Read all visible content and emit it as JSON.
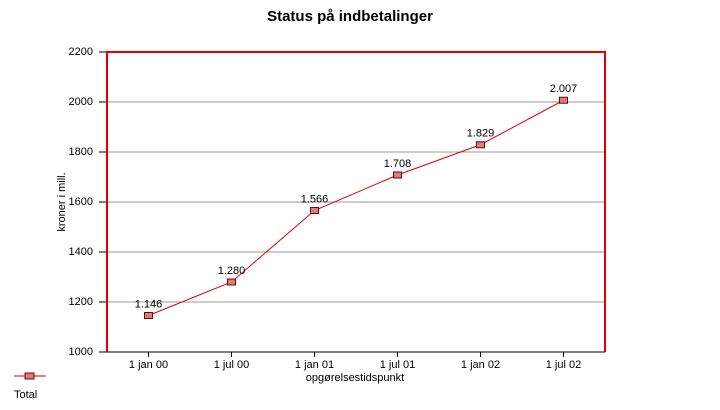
{
  "chart_data": {
    "type": "line",
    "title": "Status på indbetalinger",
    "x_label": "opgørelsestidspunkt",
    "y_label": "kroner i mill.",
    "categories": [
      "1 jan 00",
      "1 jul 00",
      "1 jan 01",
      "1 jul 01",
      "1 jan 02",
      "1 jul 02"
    ],
    "series": [
      {
        "name": "Total",
        "color": "#e00000",
        "marker_color": "#d08080",
        "values": [
          1146,
          1280,
          1566,
          1708,
          1829,
          2007
        ],
        "value_labels": [
          "1.146",
          "1.280",
          "1.566",
          "1.708",
          "1.829",
          "2.007"
        ]
      }
    ],
    "ylim": [
      1000,
      2200
    ],
    "yticks": [
      1000,
      1200,
      1400,
      1600,
      1800,
      2000,
      2200
    ],
    "grid": true,
    "legend": "bottom-left"
  }
}
